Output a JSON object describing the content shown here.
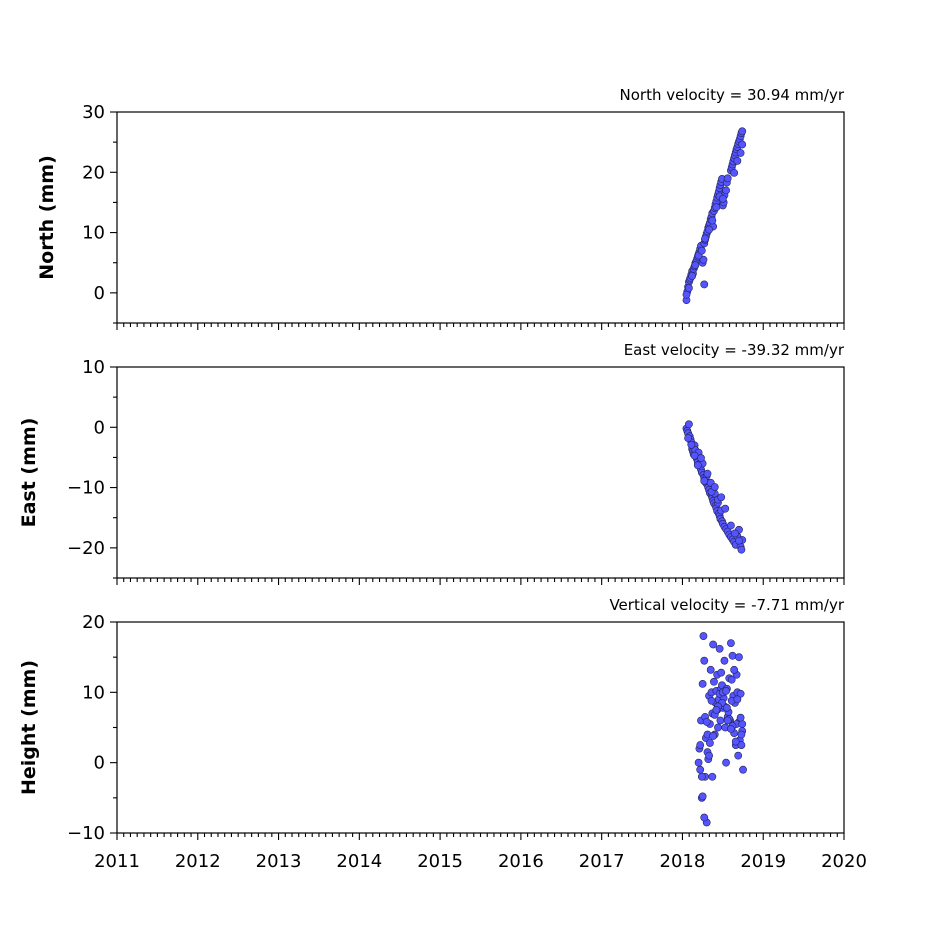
{
  "chart_data": [
    {
      "type": "scatter",
      "ylabel": "North (mm)",
      "annotation": "North velocity = 30.94 mm/yr",
      "xlim": [
        2011,
        2020
      ],
      "ylim": [
        -5,
        30
      ],
      "yticks": [
        0,
        10,
        20,
        30
      ],
      "ytick_labels": [
        "0",
        "10",
        "20",
        "30"
      ],
      "series": [
        {
          "x": [
            2018.05,
            2018.06,
            2018.07,
            2018.08,
            2018.09,
            2018.1,
            2018.11,
            2018.12,
            2018.13,
            2018.14,
            2018.15,
            2018.16,
            2018.17,
            2018.18,
            2018.19,
            2018.2,
            2018.21,
            2018.22,
            2018.23,
            2018.25,
            2018.26,
            2018.27,
            2018.28,
            2018.29,
            2018.3,
            2018.31,
            2018.32,
            2018.33,
            2018.34,
            2018.35,
            2018.36,
            2018.37,
            2018.38,
            2018.39,
            2018.4,
            2018.41,
            2018.42,
            2018.43,
            2018.44,
            2018.45,
            2018.46,
            2018.47,
            2018.48,
            2018.49,
            2018.5,
            2018.51,
            2018.52,
            2018.54,
            2018.55,
            2018.56,
            2018.6,
            2018.61,
            2018.62,
            2018.63,
            2018.64,
            2018.65,
            2018.66,
            2018.67,
            2018.68,
            2018.69,
            2018.7,
            2018.71,
            2018.72,
            2018.73,
            2018.74,
            2018.05,
            2018.08,
            2018.12,
            2018.16,
            2018.2,
            2018.24,
            2018.28,
            2018.33,
            2018.37,
            2018.42,
            2018.46,
            2018.5,
            2018.64,
            2018.68,
            2018.72,
            2018.74,
            2018.27
          ],
          "y": [
            -1.2,
            0.2,
            1.0,
            1.8,
            2.2,
            2.5,
            3.0,
            3.6,
            3.2,
            4.0,
            4.4,
            4.9,
            5.2,
            5.6,
            6.0,
            6.4,
            6.8,
            7.3,
            7.8,
            5.0,
            5.5,
            8.2,
            8.8,
            9.3,
            9.8,
            10.2,
            10.8,
            11.2,
            11.6,
            12.2,
            12.6,
            13.2,
            11.0,
            13.6,
            14.1,
            14.7,
            15.2,
            15.8,
            16.3,
            16.8,
            17.4,
            17.9,
            18.4,
            18.9,
            14.5,
            15.0,
            16.2,
            17.0,
            18.3,
            19.0,
            20.3,
            20.8,
            21.3,
            21.8,
            22.3,
            22.8,
            23.3,
            23.8,
            24.2,
            24.7,
            25.1,
            25.5,
            26.0,
            26.5,
            26.8,
            -0.3,
            0.8,
            2.8,
            4.6,
            6.2,
            7.0,
            9.0,
            10.5,
            12.0,
            14.2,
            16.0,
            15.6,
            19.9,
            21.9,
            23.2,
            24.6,
            1.4
          ]
        }
      ]
    },
    {
      "type": "scatter",
      "ylabel": "East (mm)",
      "annotation": "East velocity = -39.32 mm/yr",
      "xlim": [
        2011,
        2020
      ],
      "ylim": [
        -25,
        10
      ],
      "yticks": [
        -20,
        -10,
        0,
        10
      ],
      "ytick_labels": [
        "−20",
        "−10",
        "0",
        "10"
      ],
      "series": [
        {
          "x": [
            2018.05,
            2018.06,
            2018.07,
            2018.08,
            2018.09,
            2018.1,
            2018.11,
            2018.12,
            2018.13,
            2018.14,
            2018.15,
            2018.16,
            2018.17,
            2018.18,
            2018.19,
            2018.2,
            2018.21,
            2018.22,
            2018.23,
            2018.24,
            2018.25,
            2018.26,
            2018.27,
            2018.28,
            2018.29,
            2018.3,
            2018.31,
            2018.32,
            2018.33,
            2018.34,
            2018.35,
            2018.36,
            2018.37,
            2018.38,
            2018.39,
            2018.4,
            2018.41,
            2018.42,
            2018.43,
            2018.44,
            2018.45,
            2018.46,
            2018.47,
            2018.48,
            2018.49,
            2018.5,
            2018.52,
            2018.54,
            2018.56,
            2018.58,
            2018.6,
            2018.62,
            2018.64,
            2018.66,
            2018.68,
            2018.7,
            2018.72,
            2018.73,
            2018.74,
            2018.07,
            2018.11,
            2018.15,
            2018.19,
            2018.23,
            2018.27,
            2018.31,
            2018.36,
            2018.4,
            2018.44,
            2018.48,
            2018.53,
            2018.6,
            2018.65,
            2018.7
          ],
          "y": [
            -0.2,
            -0.6,
            -1.0,
            0.5,
            -1.5,
            -2.0,
            -2.5,
            -3.6,
            -4.0,
            -4.5,
            -3.0,
            -3.8,
            -4.9,
            -5.3,
            -5.8,
            -4.2,
            -6.1,
            -6.6,
            -7.0,
            -7.5,
            -6.0,
            -7.9,
            -8.4,
            -8.8,
            -9.2,
            -8.1,
            -9.6,
            -10.0,
            -10.4,
            -10.9,
            -9.2,
            -11.3,
            -11.7,
            -12.2,
            -12.6,
            -11.0,
            -13.0,
            -13.4,
            -13.9,
            -12.5,
            -14.3,
            -14.7,
            -15.2,
            -13.8,
            -15.6,
            -16.0,
            -16.5,
            -16.9,
            -17.3,
            -17.8,
            -18.2,
            -18.6,
            -19.0,
            -19.5,
            -18.1,
            -17.0,
            -19.8,
            -20.3,
            -18.7,
            -1.8,
            -2.9,
            -4.7,
            -6.3,
            -5.1,
            -8.9,
            -7.7,
            -10.7,
            -9.9,
            -12.0,
            -11.6,
            -13.5,
            -16.3,
            -17.6,
            -18.8
          ]
        }
      ]
    },
    {
      "type": "scatter",
      "ylabel": "Height (mm)",
      "annotation": "Vertical velocity = -7.71 mm/yr",
      "xlim": [
        2011,
        2020
      ],
      "ylim": [
        -10,
        20
      ],
      "yticks": [
        -10,
        0,
        10,
        20
      ],
      "ytick_labels": [
        "−10",
        "0",
        "10",
        "20"
      ],
      "xticks": [
        2011,
        2012,
        2013,
        2014,
        2015,
        2016,
        2017,
        2018,
        2019,
        2020
      ],
      "xtick_labels": [
        "2011",
        "2012",
        "2013",
        "2014",
        "2015",
        "2016",
        "2017",
        "2018",
        "2019",
        "2020"
      ],
      "series": [
        {
          "x": [
            2018.2,
            2018.21,
            2018.22,
            2018.23,
            2018.24,
            2018.25,
            2018.26,
            2018.27,
            2018.28,
            2018.29,
            2018.3,
            2018.31,
            2018.32,
            2018.33,
            2018.34,
            2018.35,
            2018.36,
            2018.37,
            2018.38,
            2018.39,
            2018.4,
            2018.41,
            2018.42,
            2018.43,
            2018.44,
            2018.45,
            2018.46,
            2018.47,
            2018.48,
            2018.49,
            2018.5,
            2018.51,
            2018.52,
            2018.53,
            2018.54,
            2018.55,
            2018.56,
            2018.57,
            2018.58,
            2018.59,
            2018.6,
            2018.61,
            2018.62,
            2018.63,
            2018.64,
            2018.65,
            2018.66,
            2018.67,
            2018.68,
            2018.69,
            2018.7,
            2018.71,
            2018.72,
            2018.73,
            2018.74,
            2018.75,
            2018.22,
            2018.25,
            2018.28,
            2018.31,
            2018.34,
            2018.37,
            2018.4,
            2018.43,
            2018.46,
            2018.49,
            2018.52,
            2018.55,
            2018.58,
            2018.61,
            2018.64,
            2018.67,
            2018.7,
            2018.73,
            2018.27,
            2018.33,
            2018.38,
            2018.44,
            2018.5,
            2018.56,
            2018.62,
            2018.68,
            2018.74,
            2018.24,
            2018.3,
            2018.36,
            2018.42,
            2018.48,
            2018.54,
            2018.6,
            2018.66,
            2018.72
          ],
          "y": [
            0.0,
            2.0,
            -1.0,
            6.0,
            -5.0,
            11.2,
            18.0,
            14.5,
            6.5,
            3.5,
            -8.5,
            1.5,
            0.5,
            9.5,
            5.5,
            13.2,
            10.0,
            7.0,
            16.8,
            11.5,
            4.0,
            8.5,
            10.2,
            7.5,
            5.0,
            9.0,
            16.2,
            6.0,
            10.5,
            11.0,
            7.8,
            9.2,
            8.0,
            5.0,
            0.0,
            10.5,
            6.5,
            7.2,
            12.0,
            6.0,
            17.0,
            11.8,
            15.2,
            9.5,
            4.2,
            8.5,
            2.5,
            12.5,
            10.0,
            1.0,
            5.8,
            3.2,
            9.8,
            2.5,
            4.5,
            -1.0,
            2.5,
            -4.8,
            -2.0,
            4.0,
            2.8,
            -2.0,
            6.8,
            12.5,
            9.8,
            8.5,
            14.5,
            7.8,
            6.2,
            8.8,
            13.2,
            5.5,
            15.0,
            4.0,
            -7.8,
            1.0,
            3.8,
            8.0,
            10.0,
            6.0,
            5.2,
            9.0,
            5.5,
            -2.0,
            5.8,
            8.8,
            7.5,
            12.8,
            10.2,
            4.8,
            3.0,
            6.4
          ]
        }
      ]
    }
  ]
}
